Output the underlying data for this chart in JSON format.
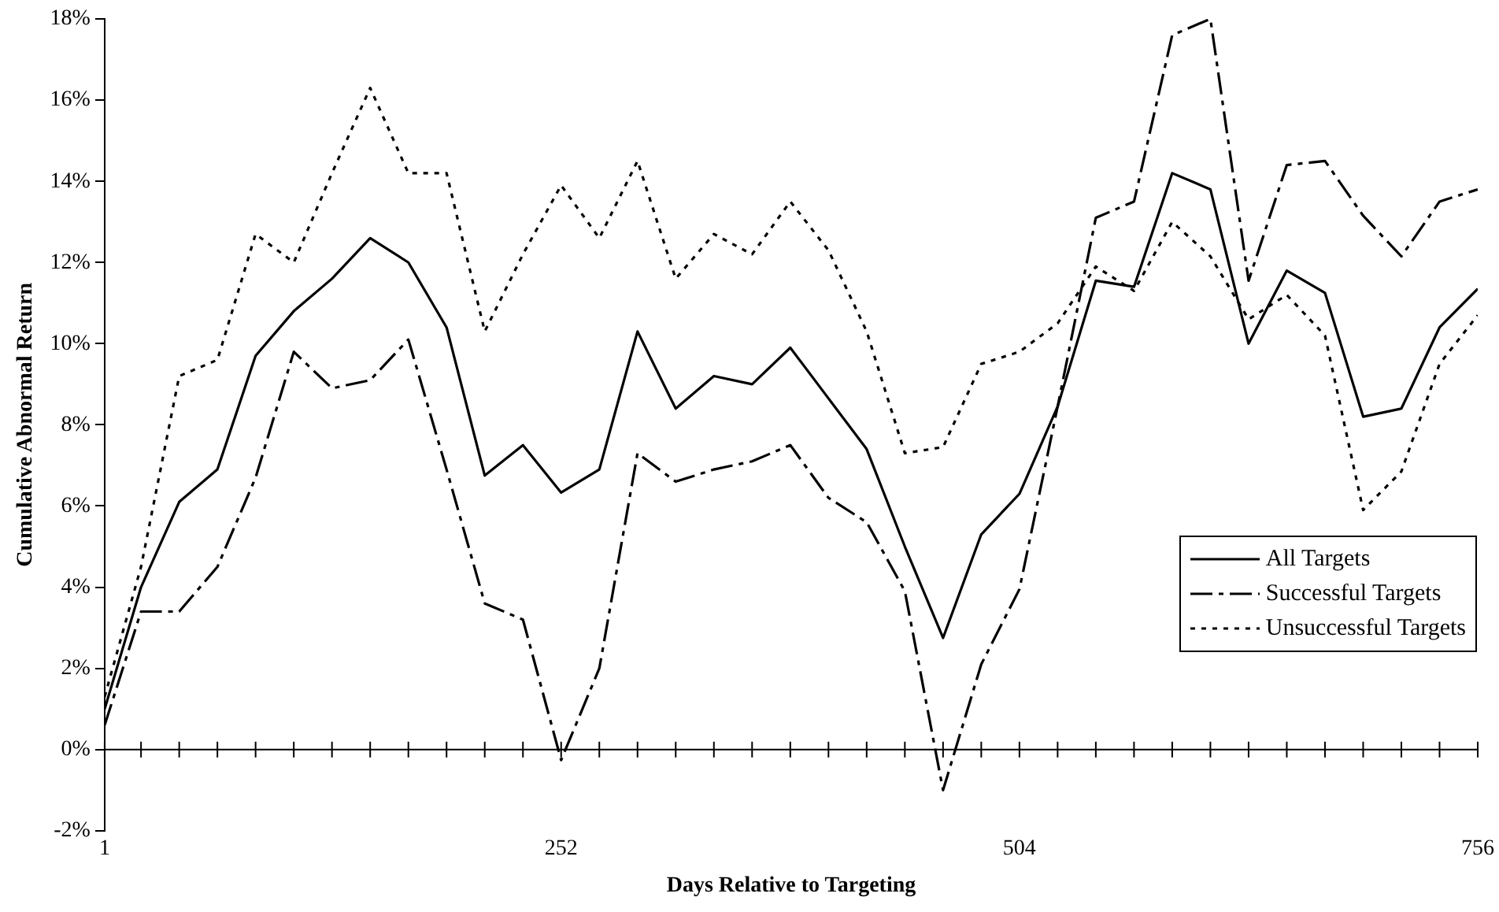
{
  "chart_data": {
    "type": "line",
    "xlabel": "Days Relative to Targeting",
    "ylabel": "Cumulative Abnormal Return",
    "x": [
      1,
      21,
      42,
      63,
      84,
      105,
      126,
      147,
      168,
      189,
      210,
      231,
      252,
      273,
      294,
      315,
      336,
      357,
      378,
      399,
      420,
      441,
      462,
      483,
      504,
      525,
      546,
      567,
      588,
      609,
      630,
      651,
      672,
      693,
      714,
      735,
      756
    ],
    "series": [
      {
        "name": "All Targets",
        "color": "#000000",
        "line_style": "solid",
        "values": [
          1.0,
          4.0,
          6.1,
          6.9,
          9.7,
          10.8,
          11.6,
          12.6,
          12.0,
          10.4,
          6.75,
          7.5,
          6.33,
          6.9,
          10.3,
          8.4,
          9.2,
          9.0,
          9.9,
          8.65,
          7.4,
          5.0,
          2.75,
          5.3,
          6.3,
          8.45,
          11.55,
          11.4,
          14.2,
          13.8,
          10.0,
          11.8,
          11.25,
          8.2,
          8.4,
          10.4,
          11.35
        ]
      },
      {
        "name": "Successful Targets",
        "color": "#000000",
        "line_style": "dashed",
        "values": [
          0.6,
          3.4,
          3.4,
          4.5,
          6.7,
          9.8,
          8.9,
          9.1,
          10.1,
          6.9,
          3.6,
          3.2,
          -0.26,
          2.0,
          7.3,
          6.6,
          6.9,
          7.1,
          7.5,
          6.2,
          5.6,
          3.9,
          -1.0,
          2.1,
          3.95,
          8.45,
          13.1,
          13.5,
          17.6,
          18.0,
          11.55,
          14.4,
          14.5,
          13.15,
          12.15,
          13.5,
          13.8
        ]
      },
      {
        "name": "Unsuccessful Targets",
        "color": "#000000",
        "line_style": "dotted",
        "values": [
          1.3,
          4.5,
          9.2,
          9.6,
          12.7,
          12.0,
          14.2,
          16.3,
          14.2,
          14.2,
          10.3,
          12.2,
          13.9,
          12.6,
          14.5,
          11.6,
          12.7,
          12.2,
          13.5,
          12.3,
          10.3,
          7.3,
          7.45,
          9.5,
          9.8,
          10.5,
          11.9,
          11.3,
          13.0,
          12.15,
          10.6,
          11.2,
          10.2,
          5.9,
          6.85,
          9.5,
          10.7
        ]
      }
    ],
    "xlim": [
      1,
      756
    ],
    "xticks": [
      1,
      {
        "value": 21,
        "label": null
      },
      {
        "value": 42,
        "label": null
      },
      {
        "value": 63,
        "label": null
      },
      {
        "value": 84,
        "label": null
      },
      {
        "value": 105,
        "label": null
      },
      {
        "value": 126,
        "label": null
      },
      {
        "value": 147,
        "label": null
      },
      {
        "value": 168,
        "label": null
      },
      {
        "value": 189,
        "label": null
      },
      {
        "value": 210,
        "label": null
      },
      {
        "value": 231,
        "label": null
      },
      252,
      {
        "value": 273,
        "label": null
      },
      {
        "value": 294,
        "label": null
      },
      {
        "value": 315,
        "label": null
      },
      {
        "value": 336,
        "label": null
      },
      {
        "value": 357,
        "label": null
      },
      {
        "value": 378,
        "label": null
      },
      {
        "value": 399,
        "label": null
      },
      {
        "value": 420,
        "label": null
      },
      {
        "value": 441,
        "label": null
      },
      {
        "value": 462,
        "label": null
      },
      {
        "value": 483,
        "label": null
      },
      504,
      {
        "value": 525,
        "label": null
      },
      {
        "value": 546,
        "label": null
      },
      {
        "value": 567,
        "label": null
      },
      {
        "value": 588,
        "label": null
      },
      {
        "value": 609,
        "label": null
      },
      {
        "value": 630,
        "label": null
      },
      {
        "value": 651,
        "label": null
      },
      {
        "value": 672,
        "label": null
      },
      {
        "value": 693,
        "label": null
      },
      {
        "value": 714,
        "label": null
      },
      {
        "value": 735,
        "label": null
      },
      756
    ],
    "ylim": [
      -2,
      18
    ],
    "yticks": [
      {
        "value": -2,
        "label": "-2%"
      },
      {
        "value": 0,
        "label": "0%"
      },
      {
        "value": 2,
        "label": "2%"
      },
      {
        "value": 4,
        "label": "4%"
      },
      {
        "value": 6,
        "label": "6%"
      },
      {
        "value": 8,
        "label": "8%"
      },
      {
        "value": 10,
        "label": "10%"
      },
      {
        "value": 12,
        "label": "12%"
      },
      {
        "value": 14,
        "label": "14%"
      },
      {
        "value": 16,
        "label": "16%"
      },
      {
        "value": 18,
        "label": "18%"
      }
    ],
    "ref_lines": [
      {
        "axis": "y",
        "value": 0,
        "color": "#000000",
        "line_style": "solid"
      }
    ],
    "grid": false,
    "legend": "right",
    "marker": "none"
  }
}
